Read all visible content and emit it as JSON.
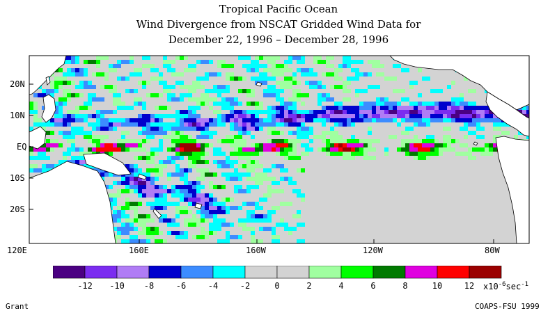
{
  "title": {
    "line1": "Tropical Pacific Ocean",
    "line2": "Wind Divergence from NSCAT Gridded Wind Data for",
    "line3": "December 22, 1996 – December 28, 1996"
  },
  "axes": {
    "lat_labels": [
      "20N",
      "10N",
      "EQ",
      "10S",
      "20S"
    ],
    "lon_labels": [
      "120E",
      "160E",
      "160W",
      "120W",
      "80W"
    ]
  },
  "colorbar": {
    "colors": [
      "#4b0082",
      "#7b2cf0",
      "#b07cf5",
      "#0000cd",
      "#3c8cff",
      "#00ffff",
      "#d3d3d3",
      "#d3d3d3",
      "#a0ffa0",
      "#00ff00",
      "#007a00",
      "#e000e0",
      "#ff0000",
      "#9b0000"
    ],
    "tick_labels": [
      "-12",
      "-10",
      "-8",
      "-6",
      "-4",
      "-2",
      "0",
      "2",
      "4",
      "6",
      "8",
      "10",
      "12"
    ],
    "units_text": "x10",
    "units_exp": "-6",
    "units_tail": "sec",
    "units_tail_exp": "-1"
  },
  "footer": {
    "left": "Grant",
    "right": "COAPS-FSU 1999"
  },
  "style": {
    "land": "#ffffff",
    "coast": "#000000"
  }
}
